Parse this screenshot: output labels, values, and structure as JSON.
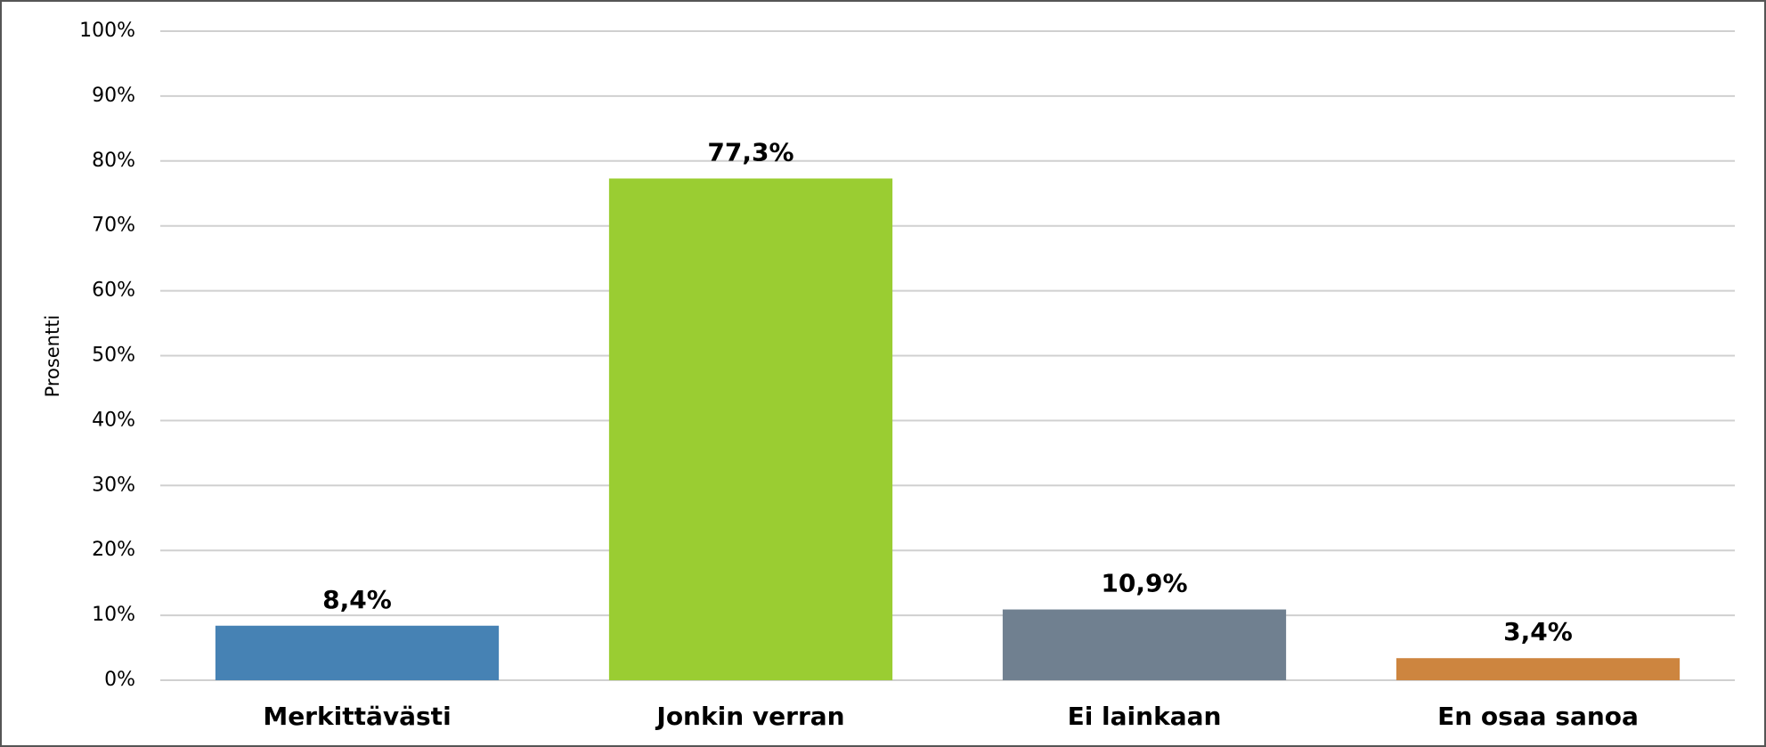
{
  "chart_data": {
    "type": "bar",
    "y_label": "Prosentti",
    "categories": [
      "Merkittävästi",
      "Jonkin verran",
      "Ei lainkaan",
      "En osaa sanoa"
    ],
    "values": [
      8.4,
      77.3,
      10.9,
      3.4
    ],
    "value_labels": [
      "8,4%",
      "77,3%",
      "10,9%",
      "3,4%"
    ],
    "colors": [
      "#4682b4",
      "#9acd32",
      "#708090",
      "#cd853f"
    ],
    "ylim": [
      0,
      100
    ],
    "yticks": [
      {
        "value": 0,
        "label": "0%"
      },
      {
        "value": 10,
        "label": "10%"
      },
      {
        "value": 20,
        "label": "20%"
      },
      {
        "value": 30,
        "label": "30%"
      },
      {
        "value": 40,
        "label": "40%"
      },
      {
        "value": 50,
        "label": "50%"
      },
      {
        "value": 60,
        "label": "60%"
      },
      {
        "value": 70,
        "label": "70%"
      },
      {
        "value": 80,
        "label": "80%"
      },
      {
        "value": 90,
        "label": "90%"
      },
      {
        "value": 100,
        "label": "100%"
      }
    ],
    "grid": true
  }
}
